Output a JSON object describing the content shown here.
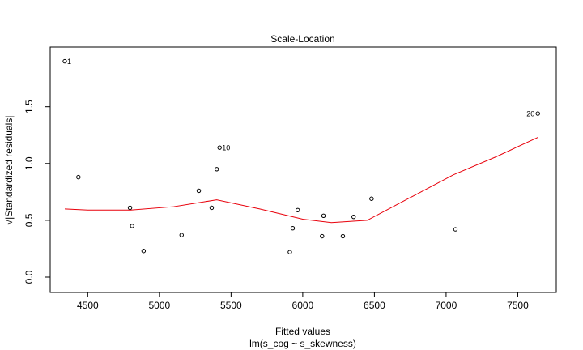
{
  "chart_data": {
    "type": "scatter",
    "title": "Scale-Location",
    "xlabel": "Fitted values",
    "xlabel_sub": "lm(s_cog ~ s_skewness)",
    "ylabel": "√|Standardized residuals|",
    "xlim": [
      4340,
      7650
    ],
    "ylim": [
      -0.05,
      1.94
    ],
    "x_ticks": [
      4500,
      5000,
      5500,
      6000,
      6500,
      7000,
      7500
    ],
    "y_ticks": [
      0.0,
      0.5,
      1.0,
      1.5
    ],
    "y_tick_labels": [
      "0.0",
      "0.5",
      "1.0",
      "1.5"
    ],
    "grid": false,
    "points": [
      {
        "x": 4340,
        "y": 1.9,
        "label": "1"
      },
      {
        "x": 4435,
        "y": 0.88
      },
      {
        "x": 4795,
        "y": 0.61
      },
      {
        "x": 4810,
        "y": 0.45
      },
      {
        "x": 4890,
        "y": 0.23
      },
      {
        "x": 5155,
        "y": 0.37
      },
      {
        "x": 5275,
        "y": 0.76
      },
      {
        "x": 5365,
        "y": 0.61
      },
      {
        "x": 5400,
        "y": 0.95
      },
      {
        "x": 5420,
        "y": 1.14,
        "label": "10"
      },
      {
        "x": 5910,
        "y": 0.22
      },
      {
        "x": 5930,
        "y": 0.43
      },
      {
        "x": 5965,
        "y": 0.59
      },
      {
        "x": 6135,
        "y": 0.36
      },
      {
        "x": 6145,
        "y": 0.54
      },
      {
        "x": 6280,
        "y": 0.36
      },
      {
        "x": 6355,
        "y": 0.53
      },
      {
        "x": 6480,
        "y": 0.69
      },
      {
        "x": 7065,
        "y": 0.42
      },
      {
        "x": 7640,
        "y": 1.44,
        "label": "20"
      }
    ],
    "smoother": {
      "color": "#e8000b",
      "x": [
        4340,
        4500,
        4800,
        5100,
        5400,
        5700,
        6000,
        6200,
        6450,
        6750,
        7050,
        7350,
        7640
      ],
      "y": [
        0.6,
        0.59,
        0.59,
        0.62,
        0.68,
        0.6,
        0.51,
        0.48,
        0.5,
        0.7,
        0.9,
        1.06,
        1.23
      ]
    }
  }
}
